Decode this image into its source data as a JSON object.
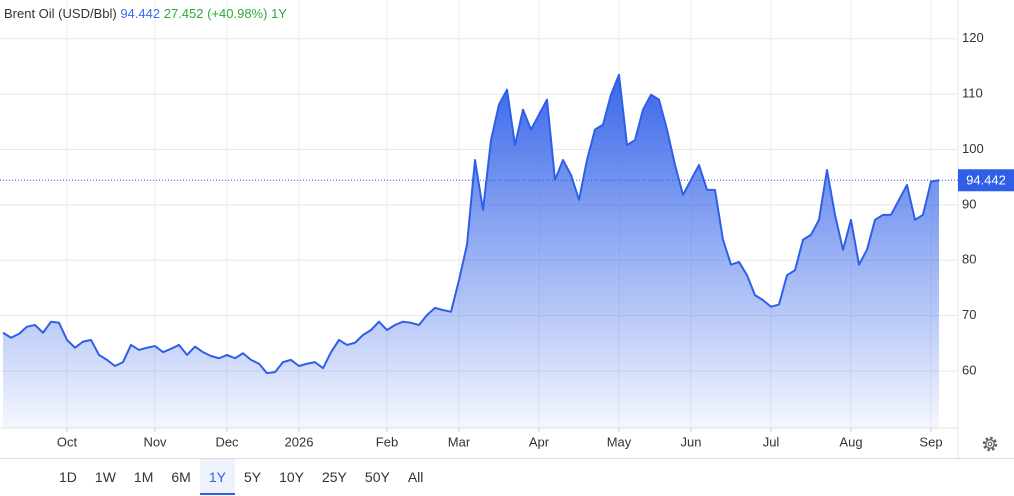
{
  "chart_data": {
    "type": "area",
    "title": "Brent Oil (USD/Bbl)",
    "change": "27.452",
    "change_percent": "(+40.98%)",
    "period": "1Y",
    "color": "#2f5fe8",
    "grid": true,
    "categories": [
      null,
      null,
      null,
      null,
      null,
      null,
      null,
      null,
      "Oct",
      null,
      null,
      null,
      null,
      null,
      null,
      null,
      null,
      null,
      null,
      "Nov",
      null,
      null,
      null,
      null,
      null,
      null,
      null,
      null,
      "Dec",
      null,
      null,
      null,
      null,
      null,
      null,
      null,
      null,
      "2026",
      null,
      null,
      null,
      null,
      null,
      null,
      null,
      null,
      null,
      null,
      "Feb",
      null,
      null,
      null,
      null,
      null,
      null,
      null,
      null,
      "Mar",
      null,
      null,
      null,
      null,
      null,
      null,
      null,
      null,
      null,
      "Apr",
      null,
      null,
      null,
      null,
      null,
      null,
      null,
      null,
      null,
      "May",
      null,
      null,
      null,
      null,
      null,
      null,
      null,
      null,
      "Jun",
      null,
      null,
      null,
      null,
      null,
      null,
      null,
      null,
      null,
      "Jul",
      null,
      null,
      null,
      null,
      null,
      null,
      null,
      null,
      null,
      "Aug",
      null,
      null,
      null,
      null,
      null,
      null,
      null,
      null,
      null,
      "Sep",
      null
    ],
    "values": [
      66.9,
      66,
      66.7,
      68,
      68.3,
      66.9,
      68.9,
      68.7,
      65.6,
      64.2,
      65.3,
      65.6,
      62.9,
      62,
      60.9,
      61.6,
      64.7,
      63.8,
      64.2,
      64.5,
      63.4,
      64,
      64.7,
      62.9,
      64.4,
      63.4,
      62.7,
      62.3,
      62.9,
      62.3,
      63.2,
      62,
      61.3,
      59.6,
      59.8,
      61.6,
      62,
      60.9,
      61.3,
      61.6,
      60.5,
      63.4,
      65.6,
      64.7,
      65.1,
      66.5,
      67.4,
      68.9,
      67.4,
      68.3,
      68.9,
      68.7,
      68.3,
      70.1,
      71.4,
      71,
      70.7,
      76.4,
      82.8,
      98.1,
      89.1,
      101.7,
      108.1,
      110.8,
      100.8,
      107.2,
      103.6,
      106.3,
      109,
      94.5,
      98.1,
      95.4,
      90.9,
      98.1,
      103.6,
      104.5,
      109.9,
      113.5,
      100.8,
      101.7,
      107.2,
      109.9,
      109,
      103.6,
      97.2,
      91.8,
      94.5,
      97.2,
      92.7,
      92.7,
      83.7,
      79.2,
      79.7,
      77.3,
      73.7,
      72.8,
      71.6,
      72,
      77.3,
      78.2,
      83.7,
      84.6,
      87.3,
      96.3,
      88.2,
      81.9,
      87.3,
      79.2,
      81.9,
      87.3,
      88.2,
      88.2,
      90.9,
      93.6,
      87.3,
      88.2,
      94.2,
      94.442
    ],
    "ylim": [
      49.7,
      127
    ],
    "yticks": [
      60,
      70,
      80,
      90,
      100,
      110,
      120
    ],
    "ranges": [
      "1D",
      "1W",
      "1M",
      "6M",
      "1Y",
      "5Y",
      "10Y",
      "25Y",
      "50Y",
      "All"
    ],
    "selected_range": "1Y"
  }
}
